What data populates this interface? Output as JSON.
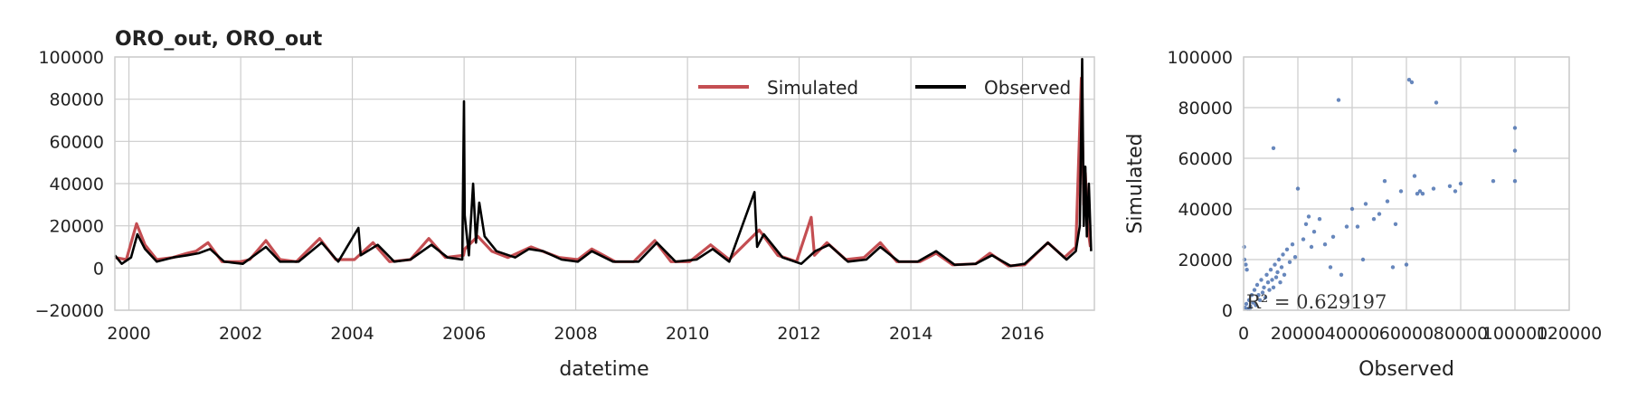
{
  "chart_data": [
    {
      "type": "line",
      "title": "ORO_out, ORO_out",
      "xlabel": "datetime",
      "ylabel": "",
      "xlim": [
        "1999-10-01",
        "2017-04-15"
      ],
      "ylim": [
        -20000,
        100000
      ],
      "x_ticks": [
        "2000",
        "2002",
        "2004",
        "2006",
        "2008",
        "2010",
        "2012",
        "2014",
        "2016"
      ],
      "y_ticks": [
        "−20000",
        "0",
        "20000",
        "40000",
        "60000",
        "80000",
        "100000"
      ],
      "grid": true,
      "legend": {
        "position": "top-right",
        "entries": [
          "Simulated",
          "Observed"
        ]
      },
      "series": [
        {
          "name": "Simulated",
          "color": "#c44e52",
          "points": [
            [
              "1999-10-01",
              5000
            ],
            [
              "1999-12-15",
              4000
            ],
            [
              "2000-02-20",
              21000
            ],
            [
              "2000-04-15",
              11000
            ],
            [
              "2000-07-01",
              4000
            ],
            [
              "2000-10-15",
              5000
            ],
            [
              "2001-01-15",
              7000
            ],
            [
              "2001-03-15",
              8000
            ],
            [
              "2001-06-01",
              12000
            ],
            [
              "2001-09-01",
              3000
            ],
            [
              "2002-01-01",
              3000
            ],
            [
              "2002-03-01",
              4000
            ],
            [
              "2002-06-15",
              13000
            ],
            [
              "2002-09-15",
              4000
            ],
            [
              "2003-01-01",
              3000
            ],
            [
              "2003-06-01",
              14000
            ],
            [
              "2003-09-15",
              4000
            ],
            [
              "2004-01-15",
              4000
            ],
            [
              "2004-05-15",
              12000
            ],
            [
              "2004-09-01",
              3000
            ],
            [
              "2005-01-15",
              4000
            ],
            [
              "2005-05-15",
              14000
            ],
            [
              "2005-09-01",
              5000
            ],
            [
              "2005-12-28",
              6000
            ],
            [
              "2006-01-05",
              9000
            ],
            [
              "2006-04-01",
              15000
            ],
            [
              "2006-07-01",
              8000
            ],
            [
              "2006-10-15",
              5000
            ],
            [
              "2007-03-15",
              10000
            ],
            [
              "2007-09-15",
              5000
            ],
            [
              "2008-01-15",
              4000
            ],
            [
              "2008-04-15",
              9000
            ],
            [
              "2008-09-15",
              3000
            ],
            [
              "2009-01-15",
              3000
            ],
            [
              "2009-06-01",
              13000
            ],
            [
              "2009-09-15",
              3000
            ],
            [
              "2010-01-15",
              3000
            ],
            [
              "2010-06-01",
              11000
            ],
            [
              "2010-10-01",
              4000
            ],
            [
              "2011-04-15",
              18000
            ],
            [
              "2011-08-15",
              6000
            ],
            [
              "2011-12-15",
              3000
            ],
            [
              "2012-03-20",
              24000
            ],
            [
              "2012-04-10",
              6000
            ],
            [
              "2012-07-01",
              12000
            ],
            [
              "2012-11-01",
              4000
            ],
            [
              "2013-03-01",
              5000
            ],
            [
              "2013-06-15",
              12000
            ],
            [
              "2013-10-01",
              3000
            ],
            [
              "2014-03-01",
              3000
            ],
            [
              "2014-06-15",
              7000
            ],
            [
              "2014-10-01",
              1500
            ],
            [
              "2015-03-01",
              2000
            ],
            [
              "2015-06-01",
              7000
            ],
            [
              "2015-10-01",
              1000
            ],
            [
              "2016-01-15",
              1500
            ],
            [
              "2016-06-15",
              12000
            ],
            [
              "2016-10-01",
              5000
            ],
            [
              "2016-12-15",
              10000
            ],
            [
              "2017-01-20",
              90000
            ],
            [
              "2017-02-05",
              30000
            ],
            [
              "2017-02-15",
              45000
            ],
            [
              "2017-03-01",
              20000
            ],
            [
              "2017-03-20",
              10000
            ]
          ]
        },
        {
          "name": "Observed",
          "color": "#000000",
          "points": [
            [
              "1999-10-01",
              6000
            ],
            [
              "1999-11-15",
              2000
            ],
            [
              "2000-01-15",
              5000
            ],
            [
              "2000-02-25",
              16000
            ],
            [
              "2000-04-15",
              9000
            ],
            [
              "2000-07-01",
              3000
            ],
            [
              "2000-10-15",
              5000
            ],
            [
              "2001-01-15",
              6000
            ],
            [
              "2001-04-01",
              7000
            ],
            [
              "2001-06-15",
              9000
            ],
            [
              "2001-09-15",
              3000
            ],
            [
              "2002-01-15",
              2000
            ],
            [
              "2002-06-15",
              10000
            ],
            [
              "2002-09-15",
              3000
            ],
            [
              "2003-01-15",
              3000
            ],
            [
              "2003-06-15",
              12000
            ],
            [
              "2003-10-01",
              3000
            ],
            [
              "2004-02-10",
              19000
            ],
            [
              "2004-02-25",
              6000
            ],
            [
              "2004-06-15",
              11000
            ],
            [
              "2004-10-01",
              3000
            ],
            [
              "2005-01-15",
              4000
            ],
            [
              "2005-06-01",
              11000
            ],
            [
              "2005-09-15",
              5000
            ],
            [
              "2005-12-20",
              4000
            ],
            [
              "2005-12-31",
              79000
            ],
            [
              "2006-01-05",
              25000
            ],
            [
              "2006-02-01",
              6000
            ],
            [
              "2006-03-01",
              40000
            ],
            [
              "2006-03-20",
              12000
            ],
            [
              "2006-04-10",
              31000
            ],
            [
              "2006-05-15",
              15000
            ],
            [
              "2006-08-01",
              8000
            ],
            [
              "2006-12-01",
              5000
            ],
            [
              "2007-03-01",
              9000
            ],
            [
              "2007-06-01",
              8000
            ],
            [
              "2007-10-01",
              4000
            ],
            [
              "2008-01-15",
              3000
            ],
            [
              "2008-04-15",
              8000
            ],
            [
              "2008-09-01",
              3000
            ],
            [
              "2009-02-15",
              3000
            ],
            [
              "2009-06-15",
              12000
            ],
            [
              "2009-10-15",
              3000
            ],
            [
              "2010-03-01",
              4000
            ],
            [
              "2010-06-15",
              9000
            ],
            [
              "2010-10-01",
              3000
            ],
            [
              "2011-03-15",
              36000
            ],
            [
              "2011-04-01",
              10000
            ],
            [
              "2011-05-15",
              16000
            ],
            [
              "2011-09-15",
              5000
            ],
            [
              "2012-01-15",
              2000
            ],
            [
              "2012-04-15",
              8000
            ],
            [
              "2012-07-15",
              11000
            ],
            [
              "2012-11-15",
              3000
            ],
            [
              "2013-03-15",
              4000
            ],
            [
              "2013-06-15",
              10000
            ],
            [
              "2013-10-15",
              3000
            ],
            [
              "2014-02-15",
              3000
            ],
            [
              "2014-06-15",
              8000
            ],
            [
              "2014-10-15",
              1500
            ],
            [
              "2015-03-01",
              2000
            ],
            [
              "2015-06-15",
              6000
            ],
            [
              "2015-10-15",
              1000
            ],
            [
              "2016-01-15",
              2000
            ],
            [
              "2016-06-15",
              12000
            ],
            [
              "2016-10-15",
              4000
            ],
            [
              "2016-12-15",
              8000
            ],
            [
              "2017-01-10",
              20000
            ],
            [
              "2017-01-25",
              99000
            ],
            [
              "2017-02-05",
              20000
            ],
            [
              "2017-02-15",
              48000
            ],
            [
              "2017-02-25",
              15000
            ],
            [
              "2017-03-10",
              40000
            ],
            [
              "2017-03-25",
              8000
            ]
          ]
        }
      ]
    },
    {
      "type": "scatter",
      "title": "",
      "xlabel": "Observed",
      "ylabel": "Simulated",
      "xlim": [
        0,
        120000
      ],
      "ylim": [
        0,
        100000
      ],
      "x_ticks": [
        "0",
        "20000",
        "40000",
        "60000",
        "80000",
        "100000",
        "120000"
      ],
      "y_ticks": [
        "0",
        "20000",
        "40000",
        "60000",
        "80000",
        "100000"
      ],
      "grid": true,
      "color": "#4c72b0",
      "annotation": "R² = 0.629197",
      "points": [
        [
          500,
          1000
        ],
        [
          1000,
          2500
        ],
        [
          1500,
          500
        ],
        [
          2000,
          4000
        ],
        [
          2500,
          1500
        ],
        [
          3000,
          6000
        ],
        [
          3500,
          3000
        ],
        [
          4000,
          8000
        ],
        [
          4500,
          2000
        ],
        [
          5000,
          10000
        ],
        [
          5500,
          6000
        ],
        [
          6000,
          4000
        ],
        [
          6500,
          12000
        ],
        [
          7000,
          7000
        ],
        [
          7500,
          9000
        ],
        [
          8000,
          5000
        ],
        [
          8500,
          14000
        ],
        [
          9000,
          11000
        ],
        [
          9500,
          8000
        ],
        [
          10000,
          16000
        ],
        [
          10500,
          12000
        ],
        [
          11000,
          9000
        ],
        [
          11500,
          18000
        ],
        [
          12000,
          13000
        ],
        [
          12500,
          15000
        ],
        [
          13000,
          20000
        ],
        [
          13500,
          11000
        ],
        [
          14000,
          17000
        ],
        [
          14500,
          22000
        ],
        [
          15000,
          14000
        ],
        [
          16000,
          24000
        ],
        [
          17000,
          19000
        ],
        [
          18000,
          26000
        ],
        [
          19000,
          21000
        ],
        [
          20000,
          48000
        ],
        [
          22000,
          28000
        ],
        [
          23000,
          34000
        ],
        [
          24000,
          37000
        ],
        [
          25000,
          25000
        ],
        [
          26000,
          31000
        ],
        [
          28000,
          36000
        ],
        [
          30000,
          26000
        ],
        [
          32000,
          17000
        ],
        [
          33000,
          29000
        ],
        [
          35000,
          83000
        ],
        [
          36000,
          14000
        ],
        [
          38000,
          33000
        ],
        [
          40000,
          40000
        ],
        [
          42000,
          33000
        ],
        [
          44000,
          20000
        ],
        [
          45000,
          42000
        ],
        [
          48000,
          36000
        ],
        [
          50000,
          38000
        ],
        [
          52000,
          51000
        ],
        [
          53000,
          43000
        ],
        [
          55000,
          17000
        ],
        [
          56000,
          34000
        ],
        [
          58000,
          47000
        ],
        [
          60000,
          18000
        ],
        [
          61000,
          91000
        ],
        [
          62000,
          90000
        ],
        [
          63000,
          53000
        ],
        [
          64000,
          46000
        ],
        [
          65000,
          47000
        ],
        [
          66000,
          46000
        ],
        [
          70000,
          48000
        ],
        [
          71000,
          82000
        ],
        [
          76000,
          49000
        ],
        [
          78000,
          47000
        ],
        [
          80000,
          50000
        ],
        [
          92000,
          51000
        ],
        [
          100000,
          63000
        ],
        [
          100000,
          51000
        ],
        [
          100000,
          72000
        ],
        [
          11000,
          64000
        ],
        [
          200,
          25000
        ],
        [
          300,
          20000
        ],
        [
          800,
          18000
        ],
        [
          1200,
          16000
        ],
        [
          2200,
          500
        ]
      ]
    }
  ]
}
